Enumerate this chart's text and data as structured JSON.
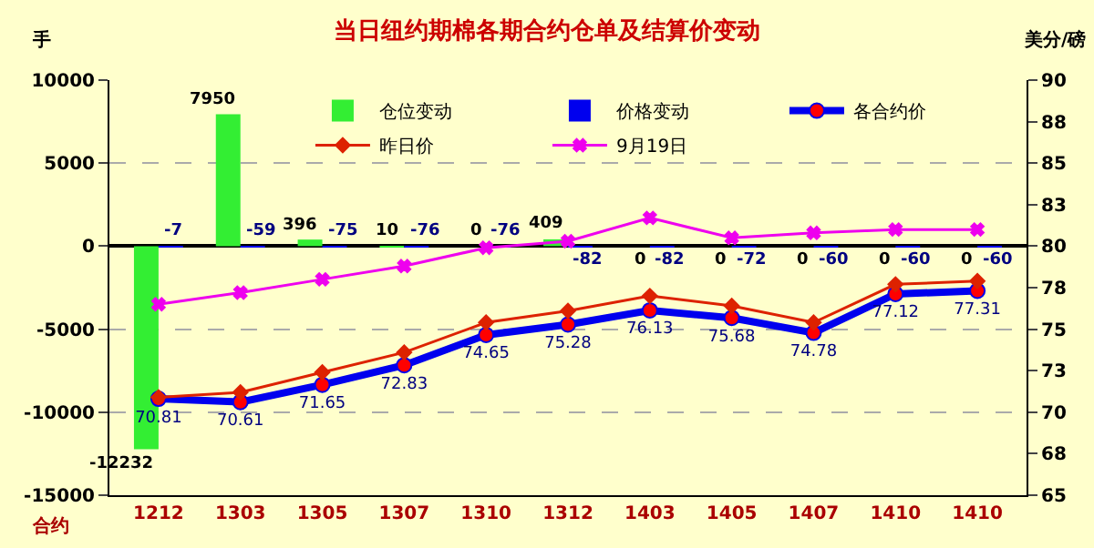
{
  "chart_data": {
    "type": "bar",
    "title": "当日纽约期棉各期合约仓单及结算价变动",
    "xlabel": "合约",
    "ylabel": "手",
    "y2label": "美分/磅",
    "categories": [
      "1212",
      "1303",
      "1305",
      "1307",
      "1310",
      "1312",
      "1403",
      "1405",
      "1407",
      "1410",
      "1410"
    ],
    "series": [
      {
        "name": "仓位变动",
        "color": "#33ee33",
        "values": [
          -12232,
          7950,
          396,
          10,
          0,
          409,
          0,
          0,
          0,
          0,
          0
        ],
        "value_labels": [
          "-12232",
          "7950",
          "396",
          "10",
          "0",
          "409",
          "0",
          "0",
          "0",
          "0",
          "0"
        ]
      },
      {
        "name": "价格变动",
        "color": "#0000ee",
        "values": [
          -7,
          -59,
          -75,
          -76,
          -76,
          -82,
          -82,
          -72,
          -60,
          -60,
          -60
        ],
        "value_labels": [
          "-7",
          "-59",
          "-75",
          "-76",
          "-76",
          "-82",
          "-82",
          "-72",
          "-60",
          "-60",
          "-60"
        ]
      },
      {
        "name": "各合约价",
        "type": "line",
        "axis": "y2",
        "color": "#0000ee",
        "marker": "circle",
        "values": [
          70.81,
          70.61,
          71.65,
          72.83,
          74.65,
          75.28,
          76.13,
          75.68,
          74.78,
          77.12,
          77.31
        ],
        "value_labels": [
          "70.81",
          "70.61",
          "71.65",
          "72.83",
          "74.65",
          "75.28",
          "76.13",
          "75.68",
          "74.78",
          "77.12",
          "77.31"
        ]
      },
      {
        "name": "昨日价",
        "type": "line",
        "axis": "y2",
        "color": "#dd2200",
        "marker": "diamond",
        "values": [
          70.9,
          71.2,
          72.4,
          73.6,
          75.4,
          76.1,
          77.0,
          76.4,
          75.4,
          77.7,
          77.9
        ]
      },
      {
        "name": "9月19日",
        "type": "line",
        "axis": "y2",
        "color": "#ee00ee",
        "marker": "cross",
        "values": [
          76.5,
          77.2,
          78.0,
          78.8,
          79.9,
          80.3,
          81.7,
          80.5,
          80.8,
          81.0,
          81.0
        ]
      }
    ],
    "ylim": [
      -15000,
      10000
    ],
    "yticks": [
      -15000,
      -10000,
      -5000,
      0,
      5000,
      10000
    ],
    "y2lim": [
      65,
      90
    ],
    "y2ticks": [
      65,
      {
        "value": 67.5,
        "label": "68"
      },
      70,
      {
        "value": 72.5,
        "label": "73"
      },
      75,
      {
        "value": 77.5,
        "label": "78"
      },
      80,
      {
        "value": 82.5,
        "label": "83"
      },
      85,
      {
        "value": 87.5,
        "label": "88"
      },
      90
    ],
    "grid": "y",
    "legend": "top right"
  }
}
